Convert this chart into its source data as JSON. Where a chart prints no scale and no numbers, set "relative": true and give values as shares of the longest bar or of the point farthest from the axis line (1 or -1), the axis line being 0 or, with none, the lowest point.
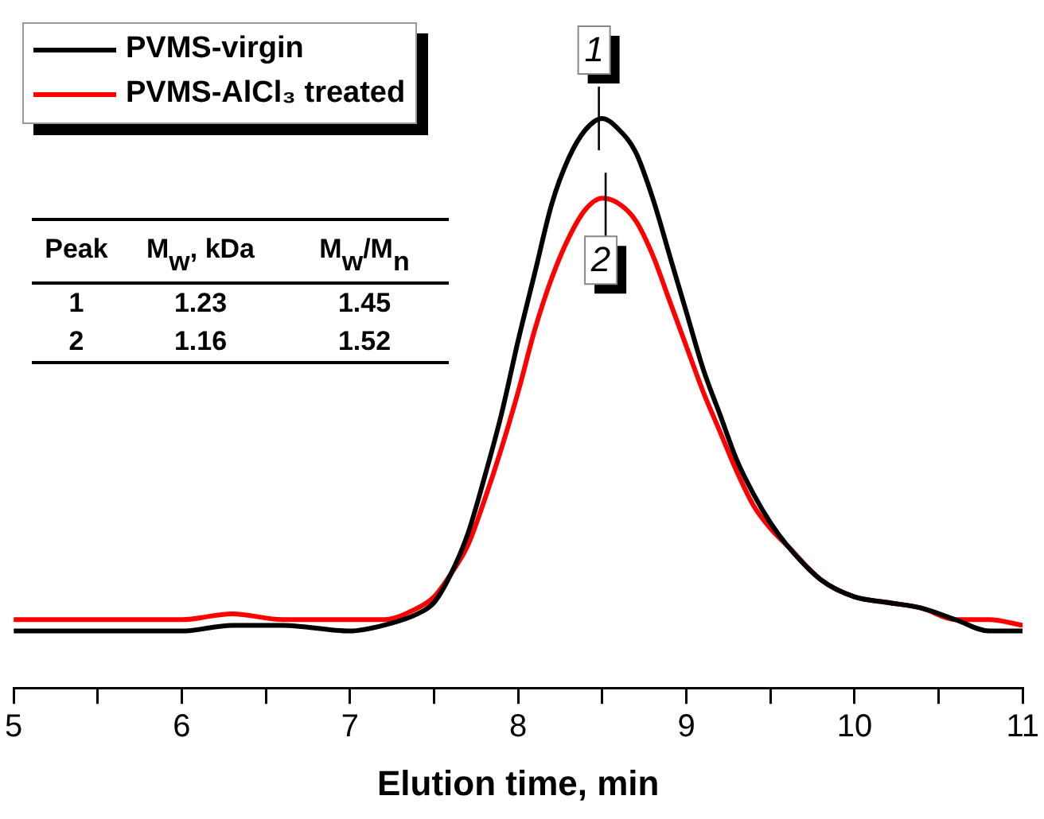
{
  "chart_data": {
    "type": "line",
    "relative": true,
    "xlabel": "Elution time, min",
    "xlim": [
      5,
      11
    ],
    "xticks": [
      5,
      {
        "value": 5.5,
        "label": null
      },
      6,
      {
        "value": 6.5,
        "label": null
      },
      7,
      {
        "value": 7.5,
        "label": null
      },
      8,
      {
        "value": 8.5,
        "label": null
      },
      9,
      {
        "value": 9.5,
        "label": null
      },
      10,
      {
        "value": 10.5,
        "label": null
      },
      11
    ],
    "x": [
      5.0,
      6.0,
      6.3,
      6.6,
      7.0,
      7.2,
      7.4,
      7.5,
      7.6,
      7.7,
      7.8,
      7.9,
      8.0,
      8.1,
      8.2,
      8.3,
      8.4,
      8.5,
      8.6,
      8.7,
      8.8,
      8.9,
      9.0,
      9.1,
      9.2,
      9.3,
      9.4,
      9.5,
      9.6,
      9.8,
      10.0,
      10.2,
      10.4,
      10.6,
      10.8,
      11.0
    ],
    "series": [
      {
        "name": "PVMS-virgin",
        "color": "#000000",
        "values": [
          0.1,
          0.1,
          0.11,
          0.11,
          0.1,
          0.11,
          0.13,
          0.15,
          0.2,
          0.27,
          0.37,
          0.48,
          0.61,
          0.73,
          0.85,
          0.93,
          0.98,
          1,
          0.98,
          0.94,
          0.86,
          0.76,
          0.66,
          0.56,
          0.48,
          0.4,
          0.34,
          0.29,
          0.25,
          0.19,
          0.16,
          0.15,
          0.14,
          0.12,
          0.1,
          0.1
        ]
      },
      {
        "name": "PVMS-AlCl₃ treated",
        "color": "#ff0000",
        "values": [
          0.12,
          0.12,
          0.13,
          0.12,
          0.12,
          0.12,
          0.14,
          0.16,
          0.2,
          0.25,
          0.33,
          0.42,
          0.52,
          0.63,
          0.72,
          0.79,
          0.84,
          0.86,
          0.85,
          0.82,
          0.76,
          0.68,
          0.6,
          0.52,
          0.45,
          0.38,
          0.32,
          0.28,
          0.25,
          0.19,
          0.16,
          0.15,
          0.14,
          0.12,
          0.12,
          0.11
        ]
      }
    ],
    "legend": "top left",
    "marker": "none",
    "line_style": "solid",
    "grid": false,
    "tick_labels": "x",
    "annotations": [
      {
        "text": "1",
        "x": 8.48,
        "y": 1
      },
      {
        "text": "2",
        "x": 8.52,
        "y": 0.86
      },
      "Peak",
      "M$_{w}$, kDa",
      "M$_{w}$/M$_{n}$",
      "1",
      "1.23",
      "1.45",
      "2",
      "1.16",
      "1.52"
    ]
  }
}
